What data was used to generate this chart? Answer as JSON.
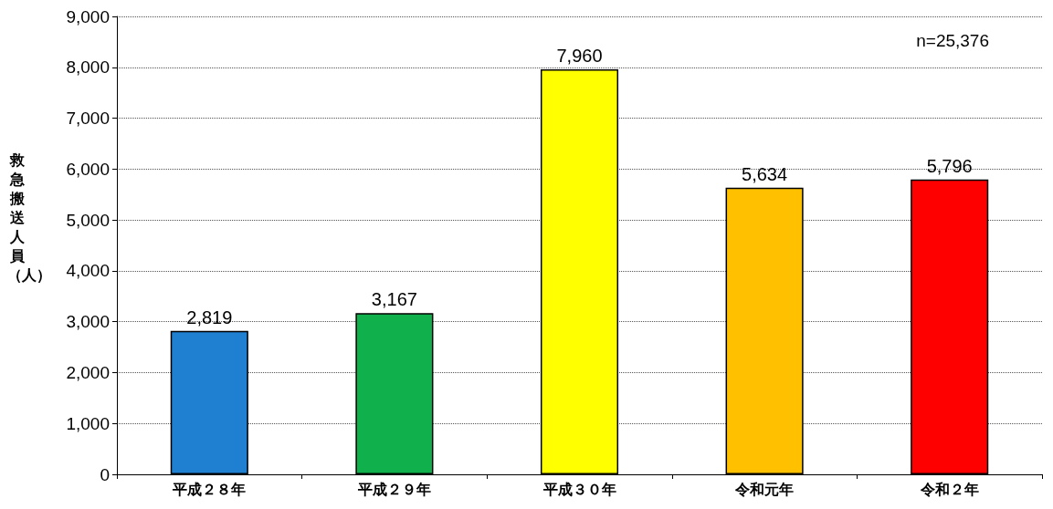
{
  "chart_data": {
    "type": "bar",
    "ylabel": "救急搬送人員（人）",
    "categories": [
      "平成２８年",
      "平成２９年",
      "平成３０年",
      "令和元年",
      "令和２年"
    ],
    "values": [
      2819,
      3167,
      7960,
      5634,
      5796
    ],
    "colors": [
      "#1f7fd0",
      "#10b04c",
      "#ffff00",
      "#ffc000",
      "#ff0000"
    ],
    "value_labels": [
      "2,819",
      "3,167",
      "7,960",
      "5,634",
      "5,796"
    ],
    "ylim": [
      0,
      9000
    ],
    "yticks": [
      {
        "value": 0,
        "label": "0"
      },
      {
        "value": 1000,
        "label": "1,000"
      },
      {
        "value": 2000,
        "label": "2,000"
      },
      {
        "value": 3000,
        "label": "3,000"
      },
      {
        "value": 4000,
        "label": "4,000"
      },
      {
        "value": 5000,
        "label": "5,000"
      },
      {
        "value": 6000,
        "label": "6,000"
      },
      {
        "value": 7000,
        "label": "7,000"
      },
      {
        "value": 8000,
        "label": "8,000"
      },
      {
        "value": 9000,
        "label": "9,000"
      }
    ],
    "grid": "y",
    "annotations": [
      "n=25,376"
    ]
  }
}
